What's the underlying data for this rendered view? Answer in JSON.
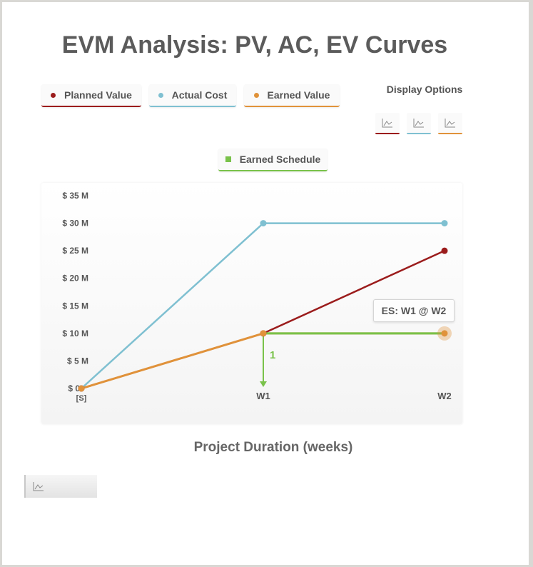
{
  "title": "EVM Analysis: PV, AC, EV Curves",
  "legend": [
    {
      "label": "Planned Value",
      "color": "#9b1c1c"
    },
    {
      "label": "Actual Cost",
      "color": "#7fc0d1"
    },
    {
      "label": "Earned Value",
      "color": "#e0923a"
    }
  ],
  "earned_schedule_toggle": {
    "label": "Earned Schedule",
    "color": "#79c24a"
  },
  "display_options": {
    "label": "Display Options",
    "buttons": [
      {
        "icon": "line-chart-icon",
        "color": "#9b1c1c"
      },
      {
        "icon": "line-chart-icon",
        "color": "#7fc0d1"
      },
      {
        "icon": "line-chart-icon",
        "color": "#e0923a"
      }
    ]
  },
  "bottom_button": {
    "icon": "line-chart-icon"
  },
  "chart_data": {
    "type": "line",
    "categories": [
      "[S]",
      "W1",
      "W2"
    ],
    "xlabel": "Project Duration (weeks)",
    "ylabel": "",
    "ylim": [
      0,
      35
    ],
    "y_ticks": [
      {
        "value": 0,
        "label": "$ 0"
      },
      {
        "value": 5,
        "label": "$ 5 M"
      },
      {
        "value": 10,
        "label": "$ 10 M"
      },
      {
        "value": 15,
        "label": "$ 15 M"
      },
      {
        "value": 20,
        "label": "$ 20 M"
      },
      {
        "value": 25,
        "label": "$ 25 M"
      },
      {
        "value": 30,
        "label": "$ 30 M"
      },
      {
        "value": 35,
        "label": "$ 35 M"
      }
    ],
    "series": [
      {
        "name": "Planned Value",
        "values": [
          0,
          10,
          25
        ],
        "color": "#9b1c1c"
      },
      {
        "name": "Actual Cost",
        "values": [
          0,
          30,
          30
        ],
        "color": "#7fc0d1"
      },
      {
        "name": "Earned Value",
        "values": [
          0,
          10,
          10
        ],
        "color": "#e0923a"
      }
    ],
    "earned_schedule": {
      "from_x": "W2",
      "to_x": "W1",
      "value": 10,
      "drop_label": "1",
      "callout": "ES: W1 @ W2",
      "color": "#79c24a"
    },
    "grid": false,
    "legend_position": "top"
  }
}
